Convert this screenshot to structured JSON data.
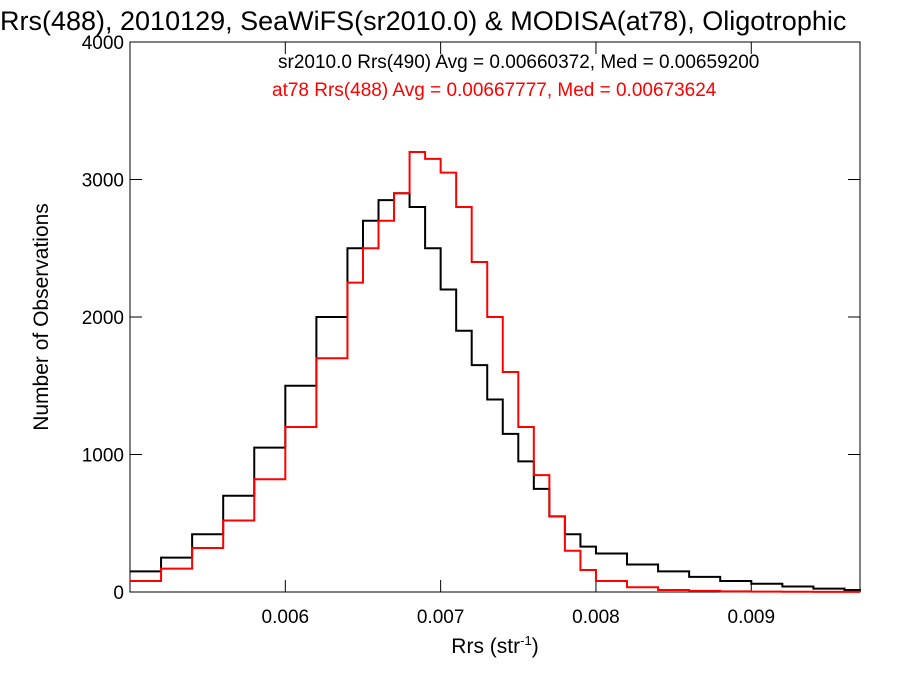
{
  "chart_data": {
    "type": "line",
    "title": "Rrs(488), 2010129, SeaWiFS(sr2010.0) & MODISA(at78), Oligotrophic",
    "xlabel": "Rrs (str",
    "xlabel_sup": "-1",
    "xlabel_close": ")",
    "ylabel": "Number of Observations",
    "xlim": [
      0.005,
      0.0097
    ],
    "ylim": [
      0,
      4000
    ],
    "x_ticks": [
      0.006,
      0.007,
      0.008,
      0.009
    ],
    "x_tick_labels": [
      "0.006",
      "0.007",
      "0.008",
      "0.009"
    ],
    "y_ticks": [
      0,
      1000,
      2000,
      3000,
      4000
    ],
    "y_tick_labels": [
      "0",
      "1000",
      "2000",
      "3000",
      "4000"
    ],
    "grid": false,
    "legend_position": "top-right",
    "legend": [
      "sr2010.0 Rrs(490) Avg = 0.00660372, Med = 0.00659200",
      "at78 Rrs(488) Avg = 0.00667777, Med = 0.00673624"
    ],
    "series": [
      {
        "name": "sr2010.0 Rrs(490)",
        "color": "#000000",
        "x": [
          0.005,
          0.0052,
          0.0054,
          0.0056,
          0.0058,
          0.006,
          0.0062,
          0.0064,
          0.0065,
          0.0066,
          0.0067,
          0.0068,
          0.0069,
          0.007,
          0.0071,
          0.0072,
          0.0073,
          0.0074,
          0.0075,
          0.0076,
          0.0077,
          0.0078,
          0.0079,
          0.008,
          0.0082,
          0.0084,
          0.0086,
          0.0088,
          0.009,
          0.0092,
          0.0094,
          0.0096,
          0.0097
        ],
        "y": [
          150,
          250,
          420,
          700,
          1050,
          1500,
          2000,
          2500,
          2700,
          2850,
          2900,
          2800,
          2500,
          2200,
          1900,
          1650,
          1400,
          1150,
          950,
          750,
          550,
          420,
          330,
          280,
          200,
          150,
          110,
          80,
          60,
          40,
          25,
          15,
          10
        ]
      },
      {
        "name": "at78 Rrs(488)",
        "color": "#ff0000",
        "x": [
          0.005,
          0.0052,
          0.0054,
          0.0056,
          0.0058,
          0.006,
          0.0062,
          0.0064,
          0.0065,
          0.0066,
          0.0067,
          0.0068,
          0.0069,
          0.007,
          0.0071,
          0.0072,
          0.0073,
          0.0074,
          0.0075,
          0.0076,
          0.0077,
          0.0078,
          0.0079,
          0.008,
          0.0082,
          0.0084,
          0.0086,
          0.0088,
          0.009,
          0.0092,
          0.0094,
          0.0096,
          0.0097
        ],
        "y": [
          80,
          170,
          320,
          520,
          820,
          1200,
          1700,
          2250,
          2500,
          2700,
          2900,
          3200,
          3150,
          3050,
          2800,
          2400,
          2000,
          1600,
          1200,
          850,
          550,
          300,
          160,
          80,
          35,
          15,
          8,
          5,
          3,
          2,
          1,
          1,
          0
        ]
      }
    ]
  }
}
